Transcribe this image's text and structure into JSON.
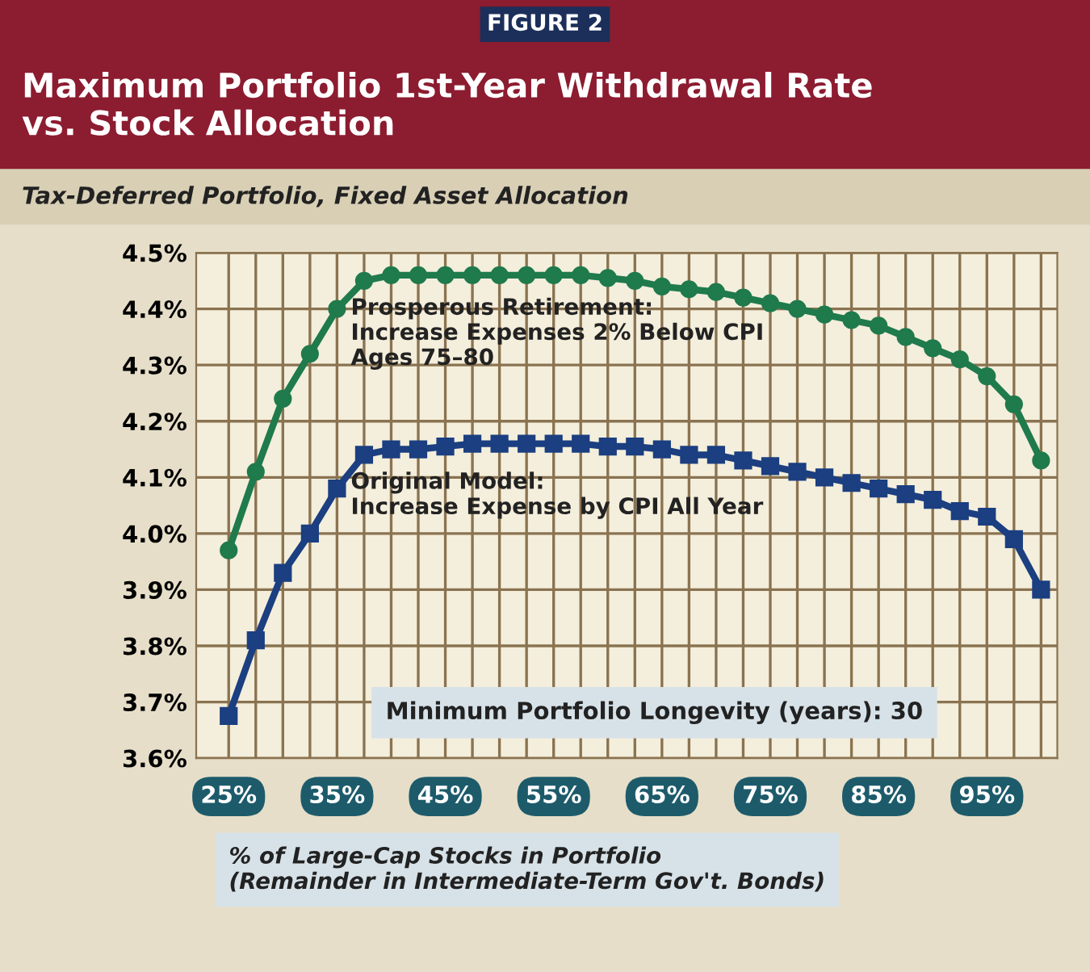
{
  "chart_data": {
    "type": "line",
    "title": "Maximum Portfolio 1st-Year Withdrawal Rate\nvs. Stock Allocation",
    "subtitle": "Tax-Deferred Portfolio, Fixed Asset Allocation",
    "xlabel": "% of Large-Cap Stocks in Portfolio\n(Remainder in Intermediate-Term Gov't. Bonds)",
    "annotations": [
      "FIGURE 2",
      "Minimum Portfolio Longevity (years): 30"
    ],
    "x": [
      25,
      27.5,
      30,
      32.5,
      35,
      37.5,
      40,
      42.5,
      45,
      47.5,
      50,
      52.5,
      55,
      57.5,
      60,
      62.5,
      65,
      67.5,
      70,
      72.5,
      75,
      77.5,
      80,
      82.5,
      85,
      87.5,
      90,
      92.5,
      95,
      97.5,
      100
    ],
    "series": [
      {
        "name": "Prosperous Retirement:\nIncrease Expenses 2% Below CPI\nAges 75–80",
        "color": "#1f7a4c",
        "marker": "circle",
        "values": [
          3.97,
          4.11,
          4.24,
          4.32,
          4.4,
          4.45,
          4.46,
          4.46,
          4.46,
          4.46,
          4.46,
          4.46,
          4.46,
          4.46,
          4.455,
          4.45,
          4.44,
          4.435,
          4.43,
          4.42,
          4.41,
          4.4,
          4.39,
          4.38,
          4.37,
          4.35,
          4.33,
          4.31,
          4.28,
          4.23,
          4.13
        ]
      },
      {
        "name": "Original Model:\nIncrease Expense by CPI All Year",
        "color": "#1b3f80",
        "marker": "square",
        "values": [
          3.675,
          3.81,
          3.93,
          4.0,
          4.08,
          4.14,
          4.15,
          4.15,
          4.155,
          4.16,
          4.16,
          4.16,
          4.16,
          4.16,
          4.155,
          4.155,
          4.15,
          4.14,
          4.14,
          4.13,
          4.12,
          4.11,
          4.1,
          4.09,
          4.08,
          4.07,
          4.06,
          4.04,
          4.03,
          3.99,
          3.9
        ]
      }
    ],
    "xlim": [
      22,
      101.5
    ],
    "xticks": [
      {
        "value": 25,
        "label": "25%"
      },
      {
        "value": 27.5,
        "label": null
      },
      {
        "value": 30,
        "label": null
      },
      {
        "value": 32.5,
        "label": null
      },
      {
        "value": 35,
        "label": "35%"
      },
      {
        "value": 37.5,
        "label": null
      },
      {
        "value": 40,
        "label": null
      },
      {
        "value": 42.5,
        "label": null
      },
      {
        "value": 45,
        "label": "45%"
      },
      {
        "value": 47.5,
        "label": null
      },
      {
        "value": 50,
        "label": null
      },
      {
        "value": 52.5,
        "label": null
      },
      {
        "value": 55,
        "label": "55%"
      },
      {
        "value": 57.5,
        "label": null
      },
      {
        "value": 60,
        "label": null
      },
      {
        "value": 62.5,
        "label": null
      },
      {
        "value": 65,
        "label": "65%"
      },
      {
        "value": 67.5,
        "label": null
      },
      {
        "value": 70,
        "label": null
      },
      {
        "value": 72.5,
        "label": null
      },
      {
        "value": 75,
        "label": "75%"
      },
      {
        "value": 77.5,
        "label": null
      },
      {
        "value": 80,
        "label": null
      },
      {
        "value": 82.5,
        "label": null
      },
      {
        "value": 85,
        "label": "85%"
      },
      {
        "value": 87.5,
        "label": null
      },
      {
        "value": 90,
        "label": null
      },
      {
        "value": 92.5,
        "label": null
      },
      {
        "value": 95,
        "label": "95%"
      },
      {
        "value": 97.5,
        "label": null
      },
      {
        "value": 100,
        "label": null
      }
    ],
    "ylim": [
      3.6,
      4.5
    ],
    "yticks": [
      {
        "value": 3.6,
        "label": "3.6%"
      },
      {
        "value": 3.7,
        "label": "3.7%"
      },
      {
        "value": 3.8,
        "label": "3.8%"
      },
      {
        "value": 3.9,
        "label": "3.9%"
      },
      {
        "value": 4.0,
        "label": "4.0%"
      },
      {
        "value": 4.1,
        "label": "4.1%"
      },
      {
        "value": 4.2,
        "label": "4.2%"
      },
      {
        "value": 4.3,
        "label": "4.3%"
      },
      {
        "value": 4.4,
        "label": "4.4%"
      },
      {
        "value": 4.5,
        "label": "4.5%"
      }
    ],
    "grid": true,
    "line_style": "solid",
    "legend": false
  }
}
